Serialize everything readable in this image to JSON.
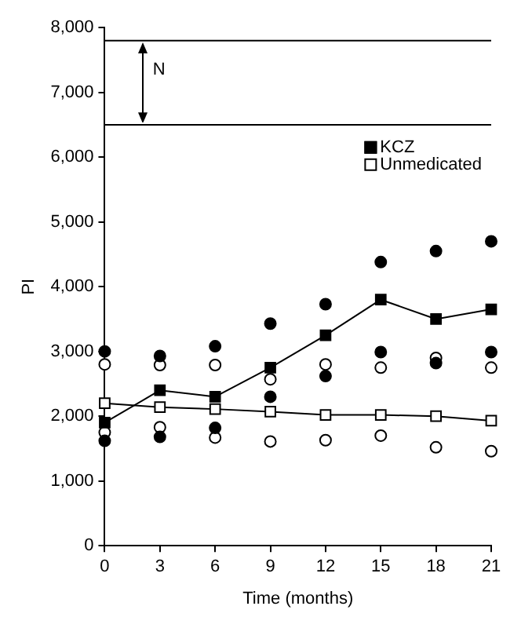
{
  "chart_data": {
    "type": "line",
    "xlabel": "Time (months)",
    "ylabel": "PI",
    "x": [
      0,
      3,
      6,
      9,
      12,
      15,
      18,
      21
    ],
    "series": [
      {
        "name": "KCZ",
        "color": "#000000",
        "marker": "square",
        "values": [
          1900,
          2400,
          2300,
          2750,
          3250,
          3800,
          3500,
          3650
        ]
      },
      {
        "name": "Unmedicated",
        "color": "#ffffff",
        "marker": "square",
        "values": [
          2200,
          2140,
          2110,
          2070,
          2020,
          2020,
          2000,
          1930
        ]
      },
      {
        "type": "scatter",
        "color": "#000000",
        "marker": "circle",
        "values": [
          3000,
          2930,
          3080,
          3430,
          3730,
          4380,
          4550,
          4700
        ]
      },
      {
        "type": "scatter",
        "color": "#000000",
        "marker": "circle",
        "values": [
          1620,
          1680,
          1820,
          2300,
          2620,
          2990,
          2820,
          2990
        ]
      },
      {
        "type": "scatter",
        "color": "#ffffff",
        "marker": "circle",
        "values": [
          2800,
          2790,
          2790,
          2570,
          2800,
          2750,
          2900,
          2750
        ]
      },
      {
        "type": "scatter",
        "color": "#ffffff",
        "marker": "circle",
        "values": [
          1750,
          1830,
          1670,
          1610,
          1630,
          1700,
          1520,
          1460
        ]
      }
    ],
    "xlim": [
      0,
      21
    ],
    "xticks": [
      0,
      3,
      6,
      9,
      12,
      15,
      18,
      21
    ],
    "ylim": [
      0,
      8000
    ],
    "yticks": [
      {
        "value": 0,
        "label": "0"
      },
      {
        "value": 1000,
        "label": "1,000"
      },
      {
        "value": 2000,
        "label": "2,000"
      },
      {
        "value": 3000,
        "label": "3,000"
      },
      {
        "value": 4000,
        "label": "4,000"
      },
      {
        "value": 5000,
        "label": "5,000"
      },
      {
        "value": 6000,
        "label": "6,000"
      },
      {
        "value": 7000,
        "label": "7,000"
      },
      {
        "value": 8000,
        "label": "8,000"
      }
    ],
    "ref_lines": [
      {
        "axis": "y",
        "value": 7800,
        "color": "#000000"
      },
      {
        "axis": "y",
        "value": 6500,
        "color": "#000000"
      }
    ],
    "annotations": [
      "N"
    ],
    "legend": "top right",
    "grid": false
  }
}
